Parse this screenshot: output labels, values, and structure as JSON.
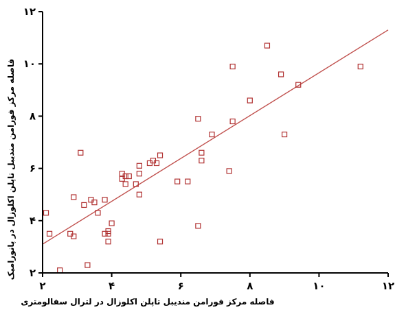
{
  "chart_data": {
    "type": "scatter",
    "xlabel": "فاصله مرکز فورامن مندیبل تاپلن اکلوزال در لترال سفالومتری",
    "ylabel": "فاصله مرکز فورامن مندیبل تاپلن اکلوزال در پانورامیک",
    "xlim": [
      2,
      12
    ],
    "ylim": [
      2,
      12
    ],
    "x_ticks": [
      2,
      4,
      6,
      8,
      10,
      12
    ],
    "y_ticks": [
      2,
      4,
      6,
      8,
      10,
      12
    ],
    "x_tick_labels": [
      "۲",
      "۴",
      "۶",
      "۸",
      "۱۰",
      "۱۲"
    ],
    "y_tick_labels": [
      "۲",
      "۴",
      "۶",
      "۸",
      "۱۰",
      "۱۲"
    ],
    "grid": false,
    "marker": "hollow-square",
    "colors": {
      "points": "#b03030",
      "fit_line": "#c0504d",
      "axes": "#000000"
    },
    "fit_line": {
      "x": [
        2,
        12
      ],
      "y": [
        3.1,
        11.3
      ]
    },
    "points": [
      {
        "x": 2.1,
        "y": 4.3
      },
      {
        "x": 2.2,
        "y": 3.5
      },
      {
        "x": 2.5,
        "y": 2.1
      },
      {
        "x": 2.8,
        "y": 3.5
      },
      {
        "x": 2.9,
        "y": 3.4
      },
      {
        "x": 2.9,
        "y": 4.9
      },
      {
        "x": 3.1,
        "y": 6.6
      },
      {
        "x": 3.2,
        "y": 4.6
      },
      {
        "x": 3.3,
        "y": 2.3
      },
      {
        "x": 3.4,
        "y": 4.8
      },
      {
        "x": 3.5,
        "y": 4.7
      },
      {
        "x": 3.6,
        "y": 4.3
      },
      {
        "x": 3.8,
        "y": 4.8
      },
      {
        "x": 3.8,
        "y": 3.5
      },
      {
        "x": 3.9,
        "y": 3.5
      },
      {
        "x": 3.9,
        "y": 3.6
      },
      {
        "x": 3.9,
        "y": 3.2
      },
      {
        "x": 4.0,
        "y": 3.9
      },
      {
        "x": 4.3,
        "y": 5.8
      },
      {
        "x": 4.3,
        "y": 5.6
      },
      {
        "x": 4.4,
        "y": 5.4
      },
      {
        "x": 4.4,
        "y": 5.7
      },
      {
        "x": 4.5,
        "y": 5.7
      },
      {
        "x": 4.7,
        "y": 5.4
      },
      {
        "x": 4.8,
        "y": 6.1
      },
      {
        "x": 4.8,
        "y": 5.8
      },
      {
        "x": 4.8,
        "y": 5.0
      },
      {
        "x": 5.1,
        "y": 6.2
      },
      {
        "x": 5.2,
        "y": 6.3
      },
      {
        "x": 5.3,
        "y": 6.2
      },
      {
        "x": 5.4,
        "y": 6.5
      },
      {
        "x": 5.4,
        "y": 3.2
      },
      {
        "x": 5.9,
        "y": 5.5
      },
      {
        "x": 6.2,
        "y": 5.5
      },
      {
        "x": 6.5,
        "y": 7.9
      },
      {
        "x": 6.5,
        "y": 3.8
      },
      {
        "x": 6.6,
        "y": 6.6
      },
      {
        "x": 6.6,
        "y": 6.3
      },
      {
        "x": 6.9,
        "y": 7.3
      },
      {
        "x": 7.4,
        "y": 5.9
      },
      {
        "x": 7.5,
        "y": 9.9
      },
      {
        "x": 7.5,
        "y": 7.8
      },
      {
        "x": 8.0,
        "y": 8.6
      },
      {
        "x": 8.5,
        "y": 10.7
      },
      {
        "x": 8.9,
        "y": 9.6
      },
      {
        "x": 9.0,
        "y": 7.3
      },
      {
        "x": 9.4,
        "y": 9.2
      },
      {
        "x": 11.2,
        "y": 9.9
      }
    ]
  }
}
